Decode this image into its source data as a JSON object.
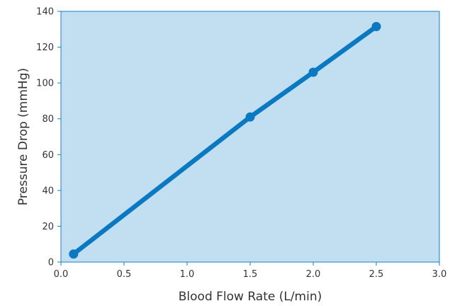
{
  "chart_data": {
    "type": "line",
    "title": "",
    "xlabel": "Blood Flow Rate (L/min)",
    "ylabel": "Pressure Drop (mmHg)",
    "xlim": [
      0,
      3
    ],
    "ylim": [
      0,
      140
    ],
    "xticks": [
      0,
      0.5,
      1,
      1.5,
      2,
      2.5,
      3
    ],
    "xtick_labels": [
      "0.0",
      "0.5",
      "1.0",
      "1.5",
      "2.0",
      "2.5",
      "3.0"
    ],
    "yticks": [
      0,
      20,
      40,
      60,
      80,
      100,
      120,
      140
    ],
    "ytick_labels": [
      "0",
      "20",
      "40",
      "60",
      "80",
      "100",
      "120",
      "140"
    ],
    "grid": false,
    "legend": "none",
    "series": [
      {
        "x": [
          0.1,
          1.5,
          2.0,
          2.5
        ],
        "y": [
          4.5,
          81,
          106,
          131.5
        ]
      }
    ],
    "colors": {
      "plot_background": "#c1dff0",
      "frame": "#1a7fc4",
      "series_line": "#0a79c2"
    }
  }
}
